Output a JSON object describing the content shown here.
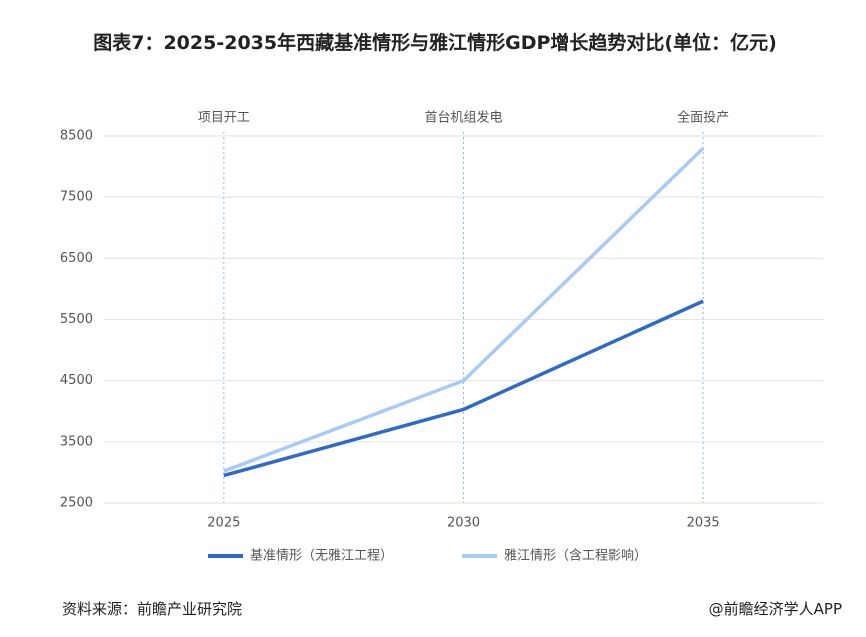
{
  "chart_data": {
    "type": "line",
    "title": "图表7：2025-2035年西藏基准情形与雅江情形GDP增长趋势对比(单位：亿元)",
    "categories": [
      "2025",
      "2030",
      "2035"
    ],
    "annotations": [
      "项目开工",
      "首台机组发电",
      "全面投产"
    ],
    "series": [
      {
        "name": "基准情形（无雅江工程）",
        "color": "#2e6bc6",
        "values": [
          2950,
          4030,
          5800
        ]
      },
      {
        "name": "雅江情形（含工程影响）",
        "color": "#a9cbf3",
        "values": [
          3020,
          4500,
          8300
        ]
      }
    ],
    "ylim": [
      2500,
      8500
    ],
    "yticks": [
      2500,
      3500,
      4500,
      5500,
      6500,
      7500,
      8500
    ],
    "grid": true,
    "source": "资料来源：前瞻产业研究院",
    "credit": "@前瞻经济学人APP"
  }
}
